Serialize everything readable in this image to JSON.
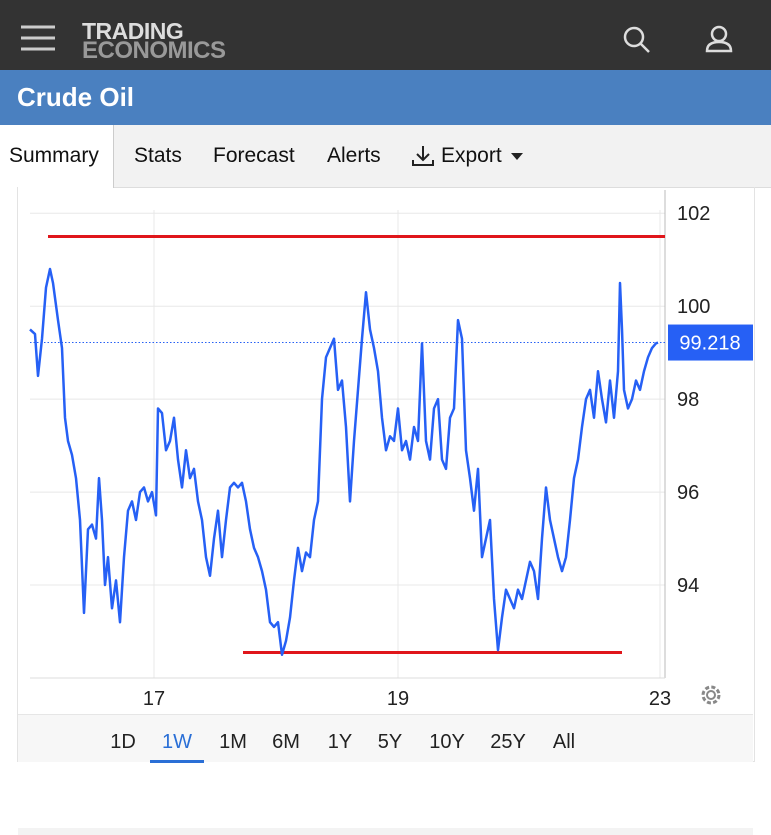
{
  "header": {
    "brand": [
      "TRADING",
      "ECONOMICS"
    ]
  },
  "title": "Crude Oil",
  "tabs": [
    "Summary",
    "Stats",
    "Forecast",
    "Alerts",
    "Export"
  ],
  "selected_tab": 0,
  "chart_data": {
    "type": "line",
    "x": [
      0,
      5,
      8,
      12,
      16,
      20,
      23,
      28,
      32,
      35,
      38,
      42,
      46,
      50,
      54,
      58,
      62,
      66,
      69,
      72,
      75,
      78,
      82,
      86,
      90,
      94,
      98,
      102,
      106,
      110,
      114,
      118,
      122,
      126,
      128,
      132,
      136,
      140,
      144,
      148,
      152,
      156,
      160,
      164,
      168,
      172,
      176,
      180,
      184,
      188,
      192,
      196,
      200,
      204,
      208,
      212,
      216,
      220,
      224,
      228,
      232,
      236,
      240,
      244,
      248,
      252,
      256,
      260,
      264,
      268,
      272,
      276,
      280,
      284,
      288,
      292,
      296,
      300,
      304,
      308,
      312,
      316,
      320,
      324,
      328,
      332,
      336,
      340,
      344,
      348,
      352,
      356,
      360,
      364,
      368,
      372,
      376,
      380,
      384,
      388,
      392,
      396,
      400,
      404,
      408,
      412,
      416,
      420,
      424,
      428,
      432,
      436,
      440,
      444,
      448,
      452,
      456,
      460,
      464,
      468,
      472,
      476,
      480,
      484,
      488,
      492,
      496,
      500,
      504,
      508,
      512,
      516,
      520,
      524,
      528,
      532,
      536,
      540,
      544,
      548,
      552,
      556,
      560,
      564,
      568,
      572,
      576,
      580,
      584,
      588,
      590,
      592,
      594,
      598,
      602,
      606,
      610,
      614,
      618,
      622,
      626,
      628
    ],
    "series": [
      {
        "name": "Crude Oil",
        "color": "#2660f5",
        "values": [
          99.5,
          99.4,
          98.5,
          99.3,
          100.4,
          100.8,
          100.5,
          99.7,
          99.1,
          97.6,
          97.1,
          96.8,
          96.3,
          95.4,
          93.4,
          95.2,
          95.3,
          95.0,
          96.3,
          95.4,
          94.0,
          94.6,
          93.5,
          94.1,
          93.2,
          94.6,
          95.6,
          95.8,
          95.4,
          96.0,
          96.1,
          95.8,
          96.0,
          95.5,
          97.8,
          97.7,
          96.9,
          97.1,
          97.6,
          96.7,
          96.1,
          96.9,
          96.3,
          96.5,
          95.8,
          95.4,
          94.6,
          94.2,
          95.0,
          95.6,
          94.6,
          95.4,
          96.1,
          96.2,
          96.1,
          96.2,
          95.8,
          95.2,
          94.8,
          94.6,
          94.3,
          93.9,
          93.2,
          93.1,
          93.2,
          92.5,
          92.8,
          93.3,
          94.1,
          94.8,
          94.3,
          94.7,
          94.6,
          95.4,
          95.8,
          98.0,
          98.9,
          99.1,
          99.3,
          98.2,
          98.4,
          97.4,
          95.8,
          97.1,
          98.2,
          99.3,
          100.3,
          99.5,
          99.1,
          98.6,
          97.6,
          96.9,
          97.2,
          97.1,
          97.8,
          96.9,
          97.1,
          96.7,
          97.4,
          97.1,
          99.2,
          97.1,
          96.7,
          97.8,
          98.0,
          96.7,
          96.5,
          97.6,
          97.8,
          99.7,
          99.3,
          96.9,
          96.3,
          95.6,
          96.5,
          94.6,
          95.0,
          95.4,
          93.7,
          92.6,
          93.3,
          93.9,
          93.7,
          93.5,
          93.9,
          93.7,
          94.1,
          94.5,
          94.3,
          93.7,
          95.0,
          96.1,
          95.4,
          95.0,
          94.6,
          94.3,
          94.6,
          95.4,
          96.3,
          96.7,
          97.4,
          98.0,
          98.2,
          97.6,
          98.6,
          98.0,
          97.5,
          98.4,
          97.6,
          98.6,
          100.5,
          99.5,
          98.2,
          97.8,
          98.0,
          98.4,
          98.2,
          98.6,
          98.9,
          99.1,
          99.2,
          99.218
        ]
      }
    ],
    "xlim": [
      0,
      635
    ],
    "xticks": [
      {
        "value": 124,
        "label": "17"
      },
      {
        "value": 368,
        "label": "19"
      },
      {
        "value": 630,
        "label": "23"
      }
    ],
    "ylim": [
      92.0,
      102.5
    ],
    "yticks": [
      94,
      96,
      98,
      100,
      102
    ],
    "grid": true,
    "hlines": [
      {
        "value": 101.5,
        "x": [
          18,
          635
        ],
        "color": "#e0161b"
      },
      {
        "value": 92.55,
        "x": [
          213,
          592
        ],
        "color": "#e0161b"
      }
    ],
    "last_value_color": "#2660f5"
  },
  "ranges": [
    "1D",
    "1W",
    "1M",
    "6M",
    "1Y",
    "5Y",
    "10Y",
    "25Y",
    "All"
  ],
  "selected_range": 1
}
